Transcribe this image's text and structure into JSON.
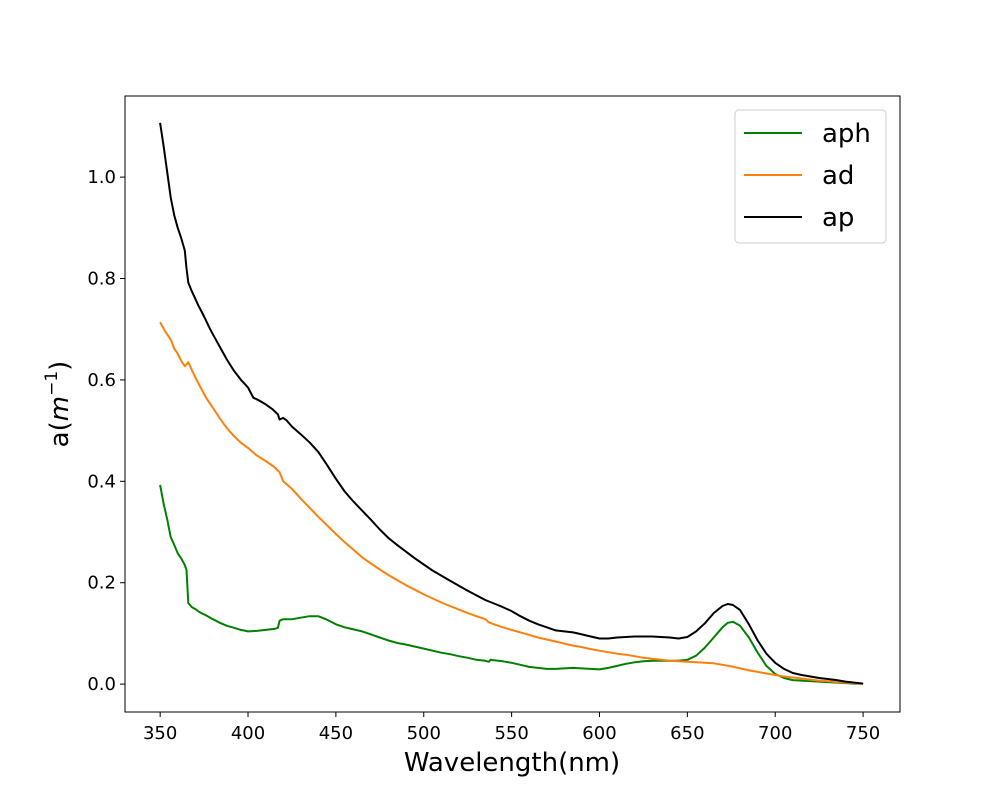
{
  "chart_data": {
    "type": "line",
    "title": "",
    "xlabel": "Wavelength(nm)",
    "ylabel": "a(m⁻¹)",
    "ylabel_parts": {
      "base": "a(",
      "var": "m",
      "sup": "−1",
      "close": ")"
    },
    "xlim": [
      330,
      771
    ],
    "ylim": [
      -0.055,
      1.16
    ],
    "xticks": [
      350,
      400,
      450,
      500,
      550,
      600,
      650,
      700,
      750
    ],
    "yticks": [
      0.0,
      0.2,
      0.4,
      0.6,
      0.8,
      1.0
    ],
    "ytick_labels": [
      "0.0",
      "0.2",
      "0.4",
      "0.6",
      "0.8",
      "1.0"
    ],
    "grid": false,
    "legend": {
      "position": "top-right"
    },
    "series": [
      {
        "name": "aph",
        "color": "#008000",
        "points": [
          [
            350,
            0.393
          ],
          [
            352,
            0.355
          ],
          [
            354,
            0.325
          ],
          [
            356,
            0.29
          ],
          [
            358,
            0.275
          ],
          [
            360,
            0.258
          ],
          [
            362,
            0.248
          ],
          [
            364,
            0.235
          ],
          [
            365,
            0.225
          ],
          [
            366,
            0.16
          ],
          [
            368,
            0.152
          ],
          [
            370,
            0.148
          ],
          [
            372,
            0.143
          ],
          [
            374,
            0.139
          ],
          [
            376,
            0.136
          ],
          [
            378,
            0.132
          ],
          [
            380,
            0.128
          ],
          [
            384,
            0.121
          ],
          [
            388,
            0.115
          ],
          [
            392,
            0.111
          ],
          [
            396,
            0.107
          ],
          [
            400,
            0.104
          ],
          [
            405,
            0.105
          ],
          [
            410,
            0.107
          ],
          [
            415,
            0.109
          ],
          [
            417,
            0.111
          ],
          [
            418,
            0.125
          ],
          [
            420,
            0.128
          ],
          [
            425,
            0.128
          ],
          [
            430,
            0.131
          ],
          [
            435,
            0.134
          ],
          [
            440,
            0.134
          ],
          [
            445,
            0.127
          ],
          [
            450,
            0.118
          ],
          [
            455,
            0.112
          ],
          [
            460,
            0.108
          ],
          [
            465,
            0.104
          ],
          [
            470,
            0.098
          ],
          [
            475,
            0.092
          ],
          [
            480,
            0.086
          ],
          [
            485,
            0.081
          ],
          [
            490,
            0.078
          ],
          [
            495,
            0.074
          ],
          [
            500,
            0.07
          ],
          [
            505,
            0.066
          ],
          [
            510,
            0.062
          ],
          [
            515,
            0.059
          ],
          [
            520,
            0.055
          ],
          [
            525,
            0.052
          ],
          [
            530,
            0.048
          ],
          [
            535,
            0.046
          ],
          [
            537,
            0.044
          ],
          [
            538,
            0.048
          ],
          [
            540,
            0.047
          ],
          [
            545,
            0.045
          ],
          [
            550,
            0.042
          ],
          [
            555,
            0.038
          ],
          [
            560,
            0.034
          ],
          [
            565,
            0.032
          ],
          [
            570,
            0.03
          ],
          [
            575,
            0.03
          ],
          [
            580,
            0.031
          ],
          [
            585,
            0.032
          ],
          [
            590,
            0.031
          ],
          [
            595,
            0.03
          ],
          [
            600,
            0.029
          ],
          [
            605,
            0.032
          ],
          [
            610,
            0.036
          ],
          [
            615,
            0.04
          ],
          [
            620,
            0.043
          ],
          [
            625,
            0.045
          ],
          [
            630,
            0.046
          ],
          [
            635,
            0.046
          ],
          [
            640,
            0.046
          ],
          [
            645,
            0.046
          ],
          [
            650,
            0.048
          ],
          [
            655,
            0.056
          ],
          [
            660,
            0.072
          ],
          [
            665,
            0.092
          ],
          [
            670,
            0.112
          ],
          [
            673,
            0.121
          ],
          [
            676,
            0.123
          ],
          [
            680,
            0.115
          ],
          [
            685,
            0.092
          ],
          [
            690,
            0.062
          ],
          [
            695,
            0.036
          ],
          [
            700,
            0.02
          ],
          [
            705,
            0.012
          ],
          [
            710,
            0.008
          ],
          [
            715,
            0.007
          ],
          [
            720,
            0.006
          ],
          [
            725,
            0.005
          ],
          [
            730,
            0.004
          ],
          [
            735,
            0.003
          ],
          [
            740,
            0.002
          ],
          [
            745,
            0.001
          ],
          [
            750,
            0.001
          ]
        ]
      },
      {
        "name": "ad",
        "color": "#ff7f0e",
        "points": [
          [
            350,
            0.714
          ],
          [
            353,
            0.695
          ],
          [
            356,
            0.68
          ],
          [
            358,
            0.662
          ],
          [
            360,
            0.652
          ],
          [
            362,
            0.638
          ],
          [
            364,
            0.627
          ],
          [
            366,
            0.635
          ],
          [
            368,
            0.62
          ],
          [
            370,
            0.605
          ],
          [
            372,
            0.592
          ],
          [
            374,
            0.579
          ],
          [
            376,
            0.566
          ],
          [
            378,
            0.555
          ],
          [
            380,
            0.545
          ],
          [
            384,
            0.524
          ],
          [
            388,
            0.505
          ],
          [
            392,
            0.489
          ],
          [
            396,
            0.476
          ],
          [
            400,
            0.466
          ],
          [
            405,
            0.451
          ],
          [
            410,
            0.44
          ],
          [
            415,
            0.428
          ],
          [
            418,
            0.418
          ],
          [
            420,
            0.4
          ],
          [
            425,
            0.385
          ],
          [
            430,
            0.366
          ],
          [
            435,
            0.348
          ],
          [
            440,
            0.33
          ],
          [
            445,
            0.313
          ],
          [
            450,
            0.296
          ],
          [
            455,
            0.28
          ],
          [
            460,
            0.265
          ],
          [
            465,
            0.25
          ],
          [
            470,
            0.238
          ],
          [
            475,
            0.226
          ],
          [
            480,
            0.215
          ],
          [
            485,
            0.205
          ],
          [
            490,
            0.195
          ],
          [
            495,
            0.186
          ],
          [
            500,
            0.177
          ],
          [
            505,
            0.169
          ],
          [
            510,
            0.161
          ],
          [
            515,
            0.154
          ],
          [
            520,
            0.147
          ],
          [
            525,
            0.14
          ],
          [
            530,
            0.134
          ],
          [
            535,
            0.128
          ],
          [
            537,
            0.122
          ],
          [
            540,
            0.118
          ],
          [
            545,
            0.112
          ],
          [
            550,
            0.107
          ],
          [
            555,
            0.102
          ],
          [
            560,
            0.097
          ],
          [
            565,
            0.092
          ],
          [
            570,
            0.088
          ],
          [
            575,
            0.084
          ],
          [
            580,
            0.08
          ],
          [
            585,
            0.076
          ],
          [
            590,
            0.073
          ],
          [
            595,
            0.069
          ],
          [
            600,
            0.066
          ],
          [
            605,
            0.063
          ],
          [
            610,
            0.06
          ],
          [
            615,
            0.058
          ],
          [
            620,
            0.055
          ],
          [
            625,
            0.052
          ],
          [
            630,
            0.05
          ],
          [
            635,
            0.048
          ],
          [
            640,
            0.046
          ],
          [
            645,
            0.045
          ],
          [
            650,
            0.044
          ],
          [
            655,
            0.043
          ],
          [
            660,
            0.042
          ],
          [
            665,
            0.041
          ],
          [
            670,
            0.038
          ],
          [
            675,
            0.035
          ],
          [
            680,
            0.031
          ],
          [
            685,
            0.027
          ],
          [
            690,
            0.024
          ],
          [
            695,
            0.021
          ],
          [
            700,
            0.018
          ],
          [
            705,
            0.015
          ],
          [
            710,
            0.013
          ],
          [
            715,
            0.011
          ],
          [
            720,
            0.009
          ],
          [
            725,
            0.007
          ],
          [
            730,
            0.006
          ],
          [
            735,
            0.004
          ],
          [
            740,
            0.003
          ],
          [
            745,
            0.002
          ],
          [
            750,
            0.001
          ]
        ]
      },
      {
        "name": "ap",
        "color": "#000000",
        "points": [
          [
            350,
            1.107
          ],
          [
            352,
            1.06
          ],
          [
            354,
            1.01
          ],
          [
            356,
            0.96
          ],
          [
            358,
            0.925
          ],
          [
            360,
            0.9
          ],
          [
            362,
            0.88
          ],
          [
            364,
            0.855
          ],
          [
            365,
            0.82
          ],
          [
            366,
            0.792
          ],
          [
            368,
            0.775
          ],
          [
            370,
            0.76
          ],
          [
            372,
            0.745
          ],
          [
            374,
            0.732
          ],
          [
            376,
            0.718
          ],
          [
            378,
            0.703
          ],
          [
            380,
            0.69
          ],
          [
            384,
            0.665
          ],
          [
            388,
            0.64
          ],
          [
            392,
            0.618
          ],
          [
            396,
            0.6
          ],
          [
            400,
            0.585
          ],
          [
            403,
            0.565
          ],
          [
            406,
            0.56
          ],
          [
            410,
            0.552
          ],
          [
            414,
            0.542
          ],
          [
            417,
            0.532
          ],
          [
            418,
            0.522
          ],
          [
            420,
            0.525
          ],
          [
            422,
            0.52
          ],
          [
            425,
            0.508
          ],
          [
            430,
            0.493
          ],
          [
            435,
            0.477
          ],
          [
            440,
            0.458
          ],
          [
            445,
            0.432
          ],
          [
            450,
            0.405
          ],
          [
            455,
            0.38
          ],
          [
            460,
            0.36
          ],
          [
            465,
            0.342
          ],
          [
            470,
            0.324
          ],
          [
            475,
            0.305
          ],
          [
            480,
            0.288
          ],
          [
            485,
            0.274
          ],
          [
            490,
            0.261
          ],
          [
            495,
            0.248
          ],
          [
            500,
            0.236
          ],
          [
            505,
            0.224
          ],
          [
            510,
            0.214
          ],
          [
            515,
            0.204
          ],
          [
            520,
            0.194
          ],
          [
            525,
            0.184
          ],
          [
            530,
            0.175
          ],
          [
            535,
            0.166
          ],
          [
            540,
            0.159
          ],
          [
            545,
            0.152
          ],
          [
            550,
            0.144
          ],
          [
            555,
            0.134
          ],
          [
            560,
            0.125
          ],
          [
            565,
            0.118
          ],
          [
            570,
            0.112
          ],
          [
            575,
            0.106
          ],
          [
            580,
            0.104
          ],
          [
            585,
            0.102
          ],
          [
            590,
            0.098
          ],
          [
            595,
            0.094
          ],
          [
            600,
            0.09
          ],
          [
            605,
            0.09
          ],
          [
            610,
            0.092
          ],
          [
            615,
            0.093
          ],
          [
            620,
            0.094
          ],
          [
            625,
            0.094
          ],
          [
            630,
            0.094
          ],
          [
            635,
            0.093
          ],
          [
            640,
            0.092
          ],
          [
            645,
            0.09
          ],
          [
            650,
            0.093
          ],
          [
            655,
            0.104
          ],
          [
            660,
            0.12
          ],
          [
            665,
            0.14
          ],
          [
            670,
            0.154
          ],
          [
            673,
            0.158
          ],
          [
            676,
            0.156
          ],
          [
            680,
            0.146
          ],
          [
            685,
            0.118
          ],
          [
            690,
            0.086
          ],
          [
            695,
            0.06
          ],
          [
            700,
            0.042
          ],
          [
            705,
            0.03
          ],
          [
            710,
            0.022
          ],
          [
            715,
            0.018
          ],
          [
            720,
            0.015
          ],
          [
            725,
            0.012
          ],
          [
            730,
            0.01
          ],
          [
            735,
            0.008
          ],
          [
            740,
            0.005
          ],
          [
            745,
            0.003
          ],
          [
            750,
            0.001
          ]
        ]
      }
    ]
  }
}
